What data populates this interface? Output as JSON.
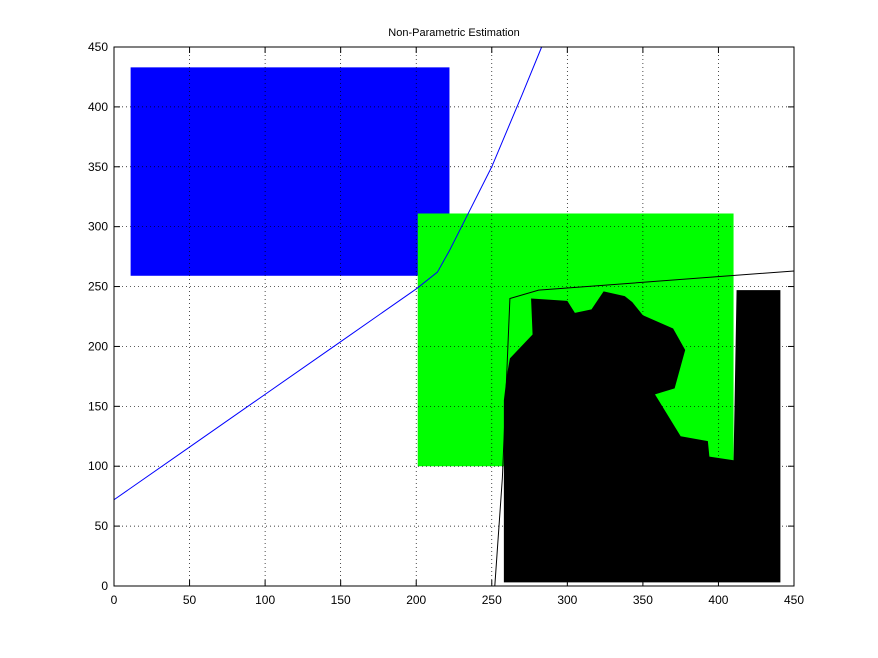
{
  "chart_data": {
    "type": "scatter",
    "title": "Non-Parametric Estimation",
    "xlabel": "",
    "ylabel": "",
    "xlim": [
      0,
      450
    ],
    "ylim": [
      0,
      450
    ],
    "x_ticks": [
      "0",
      "50",
      "100",
      "150",
      "200",
      "250",
      "300",
      "350",
      "400",
      "450"
    ],
    "y_ticks": [
      "0",
      "50",
      "100",
      "150",
      "200",
      "250",
      "300",
      "350",
      "400",
      "450"
    ],
    "grid": true,
    "colors": {
      "blue": "#0000ff",
      "green": "#00ff00",
      "black": "#000000"
    },
    "regions": [
      {
        "color": "#0000ff",
        "x_range": [
          11,
          222
        ],
        "y_range": [
          259,
          433
        ],
        "extra_polygon": [
          [
            211,
            259
          ],
          [
            222,
            259
          ],
          [
            222,
            282
          ],
          [
            214,
            279
          ],
          [
            211,
            266
          ]
        ]
      },
      {
        "color": "#00ff00",
        "x_range": [
          201,
          410
        ],
        "y_range": [
          100,
          311
        ]
      },
      {
        "color": "#000000",
        "polygon": [
          [
            259,
            3
          ],
          [
            441,
            3
          ],
          [
            441,
            247
          ],
          [
            412,
            247
          ],
          [
            410,
            105
          ],
          [
            394,
            108
          ],
          [
            393,
            121
          ],
          [
            375,
            125
          ],
          [
            358,
            160
          ],
          [
            371,
            165
          ],
          [
            378,
            197
          ],
          [
            370,
            215
          ],
          [
            350,
            226
          ],
          [
            343,
            237
          ],
          [
            338,
            242
          ],
          [
            324,
            246
          ],
          [
            316,
            231
          ],
          [
            305,
            228
          ],
          [
            300,
            238
          ],
          [
            276,
            240
          ],
          [
            277,
            210
          ],
          [
            262,
            190
          ],
          [
            260,
            176
          ],
          [
            258,
            155
          ],
          [
            258,
            3
          ]
        ]
      }
    ],
    "lines": [
      {
        "color": "#0000ff",
        "x": [
          0,
          50,
          100,
          150,
          200,
          214,
          222,
          230,
          250,
          270,
          283
        ],
        "y": [
          72,
          116,
          160,
          204,
          248,
          262,
          280,
          300,
          350,
          410,
          450
        ]
      },
      {
        "color": "#000000",
        "x": [
          252,
          257,
          259,
          262,
          281,
          450
        ],
        "y": [
          0,
          90,
          150,
          240,
          247,
          263
        ]
      }
    ]
  }
}
